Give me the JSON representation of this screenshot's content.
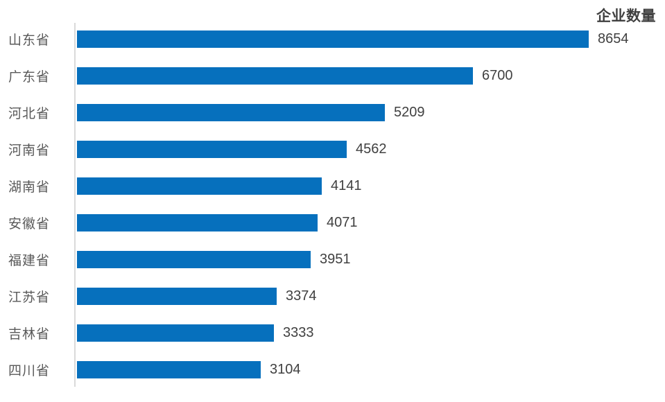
{
  "title": "企业数量",
  "colors": {
    "bar": "#0670BD",
    "axis_line": "#D9D9D9",
    "category_label": "#595959",
    "value_label": "#404040",
    "title": "#404040",
    "background": "#FFFFFF"
  },
  "chart_data": {
    "type": "bar",
    "orientation": "horizontal",
    "title": "企业数量",
    "xlabel": "",
    "ylabel": "",
    "categories": [
      "山东省",
      "广东省",
      "河北省",
      "河南省",
      "湖南省",
      "安徽省",
      "福建省",
      "江苏省",
      "吉林省",
      "四川省"
    ],
    "values": [
      8654,
      6700,
      5209,
      4562,
      4141,
      4071,
      3951,
      3374,
      3333,
      3104
    ],
    "max_value": 8654,
    "data_labels_shown": true,
    "grid": false,
    "legend": "none",
    "bar_color": "#0670BD"
  }
}
